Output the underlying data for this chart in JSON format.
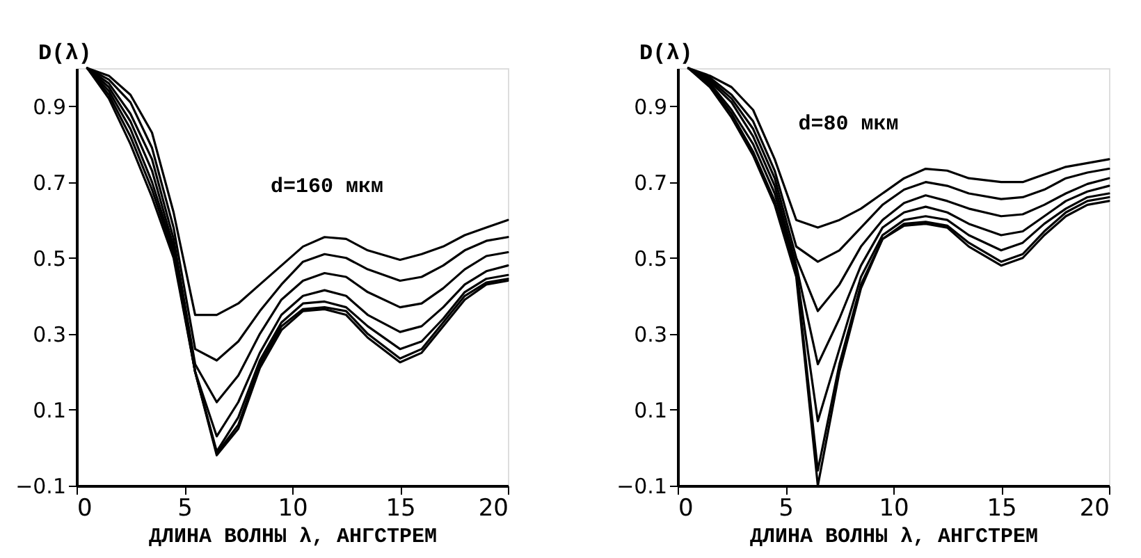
{
  "chart_data": [
    {
      "type": "line",
      "ylabel": "D(λ)",
      "xlabel": "ДЛИНА ВОЛНЫ λ,  АНГСТРЕМ",
      "annotations": [
        "d=160 мкм"
      ],
      "xlim": [
        0,
        20
      ],
      "xticks": [
        0,
        5,
        10,
        15,
        20
      ],
      "ylim": [
        -0.1,
        1.0
      ],
      "yticks": [
        -0.1,
        0.1,
        0.3,
        0.5,
        0.7,
        0.9
      ],
      "grid": false,
      "marker": "none",
      "line_style": "solid",
      "x": [
        0.5,
        1.5,
        2.5,
        3.5,
        4.5,
        5.5,
        6.5,
        7.5,
        8.5,
        9.5,
        10.5,
        11.5,
        12.5,
        13.5,
        15,
        16,
        17,
        18,
        19,
        20
      ],
      "series": [
        {
          "color": "#000000",
          "values": [
            1.0,
            0.98,
            0.93,
            0.83,
            0.62,
            0.35,
            0.35,
            0.38,
            0.43,
            0.48,
            0.53,
            0.555,
            0.55,
            0.52,
            0.495,
            0.51,
            0.53,
            0.56,
            0.58,
            0.6
          ]
        },
        {
          "color": "#000000",
          "values": [
            1.0,
            0.97,
            0.91,
            0.79,
            0.58,
            0.26,
            0.23,
            0.28,
            0.36,
            0.43,
            0.49,
            0.51,
            0.5,
            0.47,
            0.44,
            0.45,
            0.48,
            0.52,
            0.545,
            0.555
          ]
        },
        {
          "color": "#000000",
          "values": [
            1.0,
            0.96,
            0.88,
            0.76,
            0.55,
            0.22,
            0.12,
            0.19,
            0.3,
            0.39,
            0.44,
            0.46,
            0.45,
            0.41,
            0.37,
            0.38,
            0.42,
            0.47,
            0.505,
            0.515
          ]
        },
        {
          "color": "#000000",
          "values": [
            1.0,
            0.95,
            0.86,
            0.73,
            0.53,
            0.2,
            0.03,
            0.12,
            0.25,
            0.35,
            0.4,
            0.415,
            0.4,
            0.35,
            0.305,
            0.32,
            0.37,
            0.43,
            0.465,
            0.48
          ]
        },
        {
          "color": "#000000",
          "values": [
            1.0,
            0.94,
            0.84,
            0.7,
            0.52,
            0.2,
            -0.01,
            0.08,
            0.23,
            0.33,
            0.38,
            0.385,
            0.37,
            0.32,
            0.26,
            0.28,
            0.34,
            0.41,
            0.445,
            0.455
          ]
        },
        {
          "color": "#000000",
          "values": [
            1.0,
            0.93,
            0.82,
            0.68,
            0.51,
            0.2,
            -0.015,
            0.06,
            0.22,
            0.32,
            0.365,
            0.37,
            0.36,
            0.3,
            0.235,
            0.26,
            0.33,
            0.4,
            0.435,
            0.445
          ]
        },
        {
          "color": "#000000",
          "values": [
            1.0,
            0.92,
            0.8,
            0.66,
            0.5,
            0.2,
            -0.02,
            0.05,
            0.21,
            0.31,
            0.36,
            0.365,
            0.35,
            0.29,
            0.225,
            0.25,
            0.32,
            0.39,
            0.43,
            0.44
          ]
        }
      ]
    },
    {
      "type": "line",
      "ylabel": "D(λ)",
      "xlabel": "ДЛИНА ВОЛНЫ λ,  АНГСТРЕМ",
      "annotations": [
        "d=80 мкм"
      ],
      "xlim": [
        0,
        20
      ],
      "xticks": [
        0,
        5,
        10,
        15,
        20
      ],
      "ylim": [
        -0.1,
        1.0
      ],
      "yticks": [
        -0.1,
        0.1,
        0.3,
        0.5,
        0.7,
        0.9
      ],
      "grid": false,
      "marker": "none",
      "line_style": "solid",
      "x": [
        0.5,
        1.5,
        2.5,
        3.5,
        4.5,
        5.5,
        6.5,
        7.5,
        8.5,
        9.5,
        10.5,
        11.5,
        12.5,
        13.5,
        15,
        16,
        17,
        18,
        19,
        20
      ],
      "series": [
        {
          "color": "#000000",
          "values": [
            1.0,
            0.98,
            0.95,
            0.89,
            0.76,
            0.6,
            0.58,
            0.6,
            0.63,
            0.67,
            0.71,
            0.735,
            0.73,
            0.71,
            0.7,
            0.7,
            0.72,
            0.74,
            0.75,
            0.76
          ]
        },
        {
          "color": "#000000",
          "values": [
            1.0,
            0.975,
            0.93,
            0.86,
            0.73,
            0.53,
            0.49,
            0.52,
            0.58,
            0.64,
            0.68,
            0.7,
            0.69,
            0.67,
            0.655,
            0.66,
            0.68,
            0.71,
            0.725,
            0.735
          ]
        },
        {
          "color": "#000000",
          "values": [
            1.0,
            0.97,
            0.92,
            0.84,
            0.71,
            0.5,
            0.36,
            0.43,
            0.53,
            0.6,
            0.645,
            0.665,
            0.65,
            0.63,
            0.61,
            0.615,
            0.64,
            0.67,
            0.695,
            0.71
          ]
        },
        {
          "color": "#000000",
          "values": [
            1.0,
            0.965,
            0.91,
            0.82,
            0.69,
            0.48,
            0.22,
            0.34,
            0.48,
            0.58,
            0.62,
            0.635,
            0.62,
            0.59,
            0.56,
            0.57,
            0.61,
            0.65,
            0.675,
            0.69
          ]
        },
        {
          "color": "#000000",
          "values": [
            1.0,
            0.96,
            0.89,
            0.8,
            0.67,
            0.47,
            0.07,
            0.26,
            0.45,
            0.56,
            0.6,
            0.61,
            0.6,
            0.56,
            0.52,
            0.54,
            0.59,
            0.63,
            0.66,
            0.67
          ]
        },
        {
          "color": "#000000",
          "values": [
            1.0,
            0.955,
            0.88,
            0.78,
            0.65,
            0.46,
            -0.06,
            0.22,
            0.43,
            0.55,
            0.59,
            0.595,
            0.585,
            0.54,
            0.49,
            0.51,
            0.57,
            0.62,
            0.65,
            0.66
          ]
        },
        {
          "color": "#000000",
          "values": [
            1.0,
            0.95,
            0.87,
            0.77,
            0.64,
            0.45,
            -0.1,
            0.2,
            0.42,
            0.55,
            0.585,
            0.59,
            0.58,
            0.53,
            0.48,
            0.5,
            0.56,
            0.61,
            0.64,
            0.65
          ]
        }
      ]
    }
  ]
}
